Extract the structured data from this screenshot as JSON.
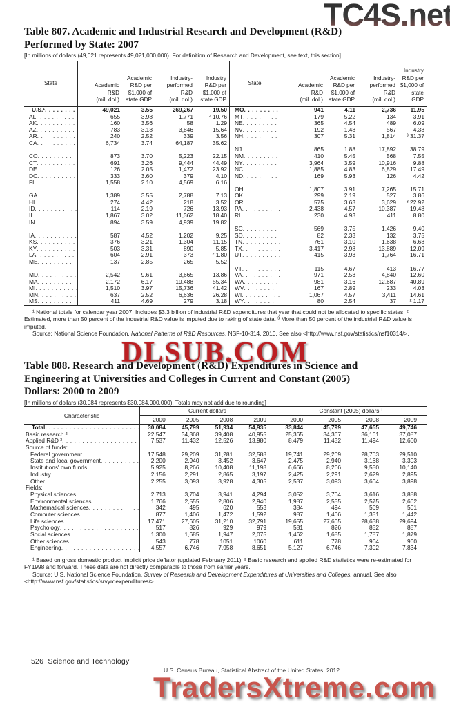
{
  "watermarks": {
    "top": "TC4S.net",
    "middle": "DLSUB.COM",
    "bottom": "TradersXtreme.com"
  },
  "footer": {
    "page_number": "526",
    "section": "Science and Technology",
    "attribution": "U.S. Census Bureau, Statistical Abstract of the United States: 2012"
  },
  "table807": {
    "title_line1": "Table 807. Academic and Industrial Research and Development (R&D)",
    "title_line2": "Performed by State: 2007",
    "note": "[In millions of dollars (49,021 represents 49,021,000,000). For definition of Research and Development, see text, this section]",
    "headers": [
      "State",
      "Academic\nR&D\n(mil. dol.)",
      "Academic\nR&D per\n$1,000 of\nstate GDP",
      "Industry-\nperformed\nR&D\n(mil. dol.)",
      "Industry\nR&D per\n$1,000 of\nstate GDP"
    ],
    "rows": [
      [
        "U.S.¹",
        "49,021",
        "3.55",
        "269,267",
        "19.50",
        "MO",
        "941",
        "4.11",
        "2,736",
        "11.95"
      ],
      [
        "AL",
        "655",
        "3.98",
        "1,771",
        "² 10.76",
        "MT",
        "179",
        "5.22",
        "134",
        "3.91"
      ],
      [
        "AK",
        "160",
        "3.56",
        "58",
        "1.29",
        "NE",
        "365",
        "4.54",
        "489",
        "6.09"
      ],
      [
        "AZ",
        "783",
        "3.18",
        "3,846",
        "15.64",
        "NV",
        "192",
        "1.48",
        "567",
        "4.38"
      ],
      [
        "AR",
        "240",
        "2.52",
        "339",
        "3.56",
        "NH",
        "307",
        "5.31",
        "1,814",
        "³ 31.37"
      ],
      [
        "CA",
        "6,734",
        "3.74",
        "64,187",
        "35.62",
        "",
        "",
        "",
        "",
        ""
      ],
      [
        "",
        "",
        "",
        "",
        "",
        "NJ",
        "865",
        "1.88",
        "17,892",
        "38.79"
      ],
      [
        "CO",
        "873",
        "3.70",
        "5,223",
        "22.15",
        "NM",
        "410",
        "5.45",
        "568",
        "7.55"
      ],
      [
        "CT",
        "691",
        "3.26",
        "9,444",
        "44.49",
        "NY",
        "3,964",
        "3.59",
        "10,916",
        "9.88"
      ],
      [
        "DE",
        "126",
        "2.05",
        "1,472",
        "23.92",
        "NC",
        "1,885",
        "4.83",
        "6,829",
        "17.49"
      ],
      [
        "DC",
        "333",
        "3.60",
        "379",
        "4.10",
        "ND",
        "169",
        "5.93",
        "126",
        "4.42"
      ],
      [
        "FL",
        "1,558",
        "2.10",
        "4,569",
        "6.16",
        "",
        "",
        "",
        "",
        ""
      ],
      [
        "",
        "",
        "",
        "",
        "",
        "OH",
        "1,807",
        "3.91",
        "7,265",
        "15.71"
      ],
      [
        "GA",
        "1,389",
        "3.55",
        "2,788",
        "7.13",
        "OK",
        "299",
        "2.19",
        "527",
        "3.86"
      ],
      [
        "HI",
        "274",
        "4.42",
        "218",
        "3.52",
        "OR",
        "575",
        "3.63",
        "3,629",
        "³ 22.92"
      ],
      [
        "ID",
        "114",
        "2.19",
        "726",
        "13.93",
        "PA",
        "2,438",
        "4.57",
        "10,387",
        "19.48"
      ],
      [
        "IL",
        "1,867",
        "3.02",
        "11,362",
        "18.40",
        "RI",
        "230",
        "4.93",
        "411",
        "8.80"
      ],
      [
        "IN",
        "894",
        "3.59",
        "4,939",
        "19.82",
        "",
        "",
        "",
        "",
        ""
      ],
      [
        "",
        "",
        "",
        "",
        "",
        "SC",
        "569",
        "3.75",
        "1,426",
        "9.40"
      ],
      [
        "IA",
        "587",
        "4.52",
        "1,202",
        "9.25",
        "SD",
        "82",
        "2.33",
        "132",
        "3.75"
      ],
      [
        "KS",
        "376",
        "3.21",
        "1,304",
        "11.15",
        "TN",
        "761",
        "3.10",
        "1,638",
        "6.68"
      ],
      [
        "KY",
        "503",
        "3.31",
        "890",
        "5.85",
        "TX",
        "3,417",
        "2.98",
        "13,889",
        "12.09"
      ],
      [
        "LA",
        "604",
        "2.91",
        "373",
        "² 1.80",
        "UT",
        "415",
        "3.93",
        "1,764",
        "16.71"
      ],
      [
        "ME",
        "137",
        "2.85",
        "265",
        "5.52",
        "",
        "",
        "",
        "",
        ""
      ],
      [
        "",
        "",
        "",
        "",
        "",
        "VT",
        "115",
        "4.67",
        "413",
        "16.77"
      ],
      [
        "MD",
        "2,542",
        "9.61",
        "3,665",
        "13.86",
        "VA",
        "971",
        "2.53",
        "4,840",
        "12.60"
      ],
      [
        "MA",
        "2,172",
        "6.17",
        "19,488",
        "55.34",
        "WA",
        "981",
        "3.16",
        "12,687",
        "40.89"
      ],
      [
        "MI",
        "1,510",
        "3.97",
        "15,736",
        "41.42",
        "WV",
        "167",
        "2.89",
        "233",
        "4.03"
      ],
      [
        "MN",
        "637",
        "2.52",
        "6,636",
        "26.28",
        "WI",
        "1,067",
        "4.57",
        "3,411",
        "14.61"
      ],
      [
        "MS",
        "411",
        "4.69",
        "279",
        "3.18",
        "WY",
        "80",
        "2.54",
        "37",
        "² 1.17"
      ]
    ],
    "footnotes": "¹ National totals for calendar year 2007.  Includes $3.3 billion of industrial R&D expenditures that year that could not be allocated to specific states. ² Estimated, more than 50 percent of the industrial R&D value is imputed due to raking of state data. ³ More than 50 percent of the industrial R&D value is imputed.",
    "source_prefix": "Source: National Science Foundation, ",
    "source_italic": "National Patterns of R&D Resources",
    "source_suffix": ", NSF-10-314, 2010. See also <http://www.nsf.gov/statistics/nsf10314/>."
  },
  "table808": {
    "title_line1": "Table 808. Research and Development (R&D) Expenditures in Science and",
    "title_line2": "Engineering at Universities and Colleges in Current and Constant (2005)",
    "title_line3": "Dollars: 2000 to 2009",
    "note": "[In millions of dollars (30,084 represents $30,084,000,000). Totals may not add due to rounding]",
    "characteristic_header": "Characteristic",
    "group_headers": [
      "Current dollars",
      "Constant (2005) dollars ¹"
    ],
    "years": [
      "2000",
      "2005",
      "2008",
      "2009",
      "2000",
      "2005",
      "2008",
      "2009"
    ],
    "rows": [
      {
        "label": "Total",
        "style": "total",
        "values": [
          "30,084",
          "45,799",
          "51,934",
          "54,935",
          "33,844",
          "45,799",
          "47,655",
          "49,746"
        ]
      },
      {
        "label": "Basic research ²",
        "indent": 0,
        "values": [
          "22,547",
          "34,368",
          "39,408",
          "40,955",
          "25,365",
          "34,367",
          "36,161",
          "37,087"
        ]
      },
      {
        "label": "Applied R&D ²",
        "indent": 0,
        "values": [
          "7,537",
          "11,432",
          "12,526",
          "13,980",
          "8,479",
          "11,432",
          "11,494",
          "12,660"
        ]
      },
      {
        "label": "Source of funds:",
        "style": "section",
        "values": []
      },
      {
        "label": "Federal government",
        "indent": 1,
        "values": [
          "17,548",
          "29,209",
          "31,281",
          "32,588",
          "19,741",
          "29,209",
          "28,703",
          "29,510"
        ]
      },
      {
        "label": "State and local government",
        "indent": 1,
        "values": [
          "2,200",
          "2,940",
          "3,452",
          "3,647",
          "2,475",
          "2,940",
          "3,168",
          "3,303"
        ]
      },
      {
        "label": "Institutions' own funds",
        "indent": 1,
        "values": [
          "5,925",
          "8,266",
          "10,408",
          "11,198",
          "6,666",
          "8,266",
          "9,550",
          "10,140"
        ]
      },
      {
        "label": "Industry",
        "indent": 1,
        "values": [
          "2,156",
          "2,291",
          "2,865",
          "3,197",
          "2,425",
          "2,291",
          "2,629",
          "2,895"
        ]
      },
      {
        "label": "Other",
        "indent": 1,
        "values": [
          "2,255",
          "3,093",
          "3,928",
          "4,305",
          "2,537",
          "3,093",
          "3,604",
          "3,898"
        ]
      },
      {
        "label": "Fields:",
        "style": "section",
        "values": []
      },
      {
        "label": "Physical sciences",
        "indent": 1,
        "values": [
          "2,713",
          "3,704",
          "3,941",
          "4,294",
          "3,052",
          "3,704",
          "3,616",
          "3,888"
        ]
      },
      {
        "label": "Environmental sciences",
        "indent": 1,
        "values": [
          "1,766",
          "2,555",
          "2,806",
          "2,940",
          "1,987",
          "2,555",
          "2,575",
          "2,662"
        ]
      },
      {
        "label": "Mathematical sciences",
        "indent": 1,
        "values": [
          "342",
          "495",
          "620",
          "553",
          "384",
          "494",
          "569",
          "501"
        ]
      },
      {
        "label": "Computer sciences",
        "indent": 1,
        "values": [
          "877",
          "1,406",
          "1,472",
          "1,592",
          "987",
          "1,406",
          "1,351",
          "1,442"
        ]
      },
      {
        "label": "Life sciences",
        "indent": 1,
        "values": [
          "17,471",
          "27,605",
          "31,210",
          "32,791",
          "19,655",
          "27,605",
          "28,638",
          "29,694"
        ]
      },
      {
        "label": "Psychology",
        "indent": 1,
        "values": [
          "517",
          "826",
          "929",
          "979",
          "581",
          "826",
          "852",
          "887"
        ]
      },
      {
        "label": "Social sciences",
        "indent": 1,
        "values": [
          "1,300",
          "1,685",
          "1,947",
          "2,075",
          "1,462",
          "1,685",
          "1,787",
          "1,879"
        ]
      },
      {
        "label": "Other sciences",
        "indent": 1,
        "values": [
          "543",
          "778",
          "1051",
          "1060",
          "611",
          "778",
          "964",
          "960"
        ]
      },
      {
        "label": "Engineering",
        "indent": 1,
        "values": [
          "4,557",
          "6,746",
          "7,958",
          "8,651",
          "5,127",
          "6,746",
          "7,302",
          "7,834"
        ]
      }
    ],
    "footnotes": "¹ Based on gross domestic product implicit price deflator (updated February 2011). ² Basic research and applied R&D statistics were re-estimated for FY1998 and forward. These data are not directly comparable to those from earlier years.",
    "source_prefix": "Source: U.S. National Science Foundation, ",
    "source_italic": "Survey of Research and Development Expenditures at Universities and Colleges,",
    "source_suffix": " annual. See also <http://www.nsf.gov/statistics/srvyrdexpenditures/>."
  }
}
